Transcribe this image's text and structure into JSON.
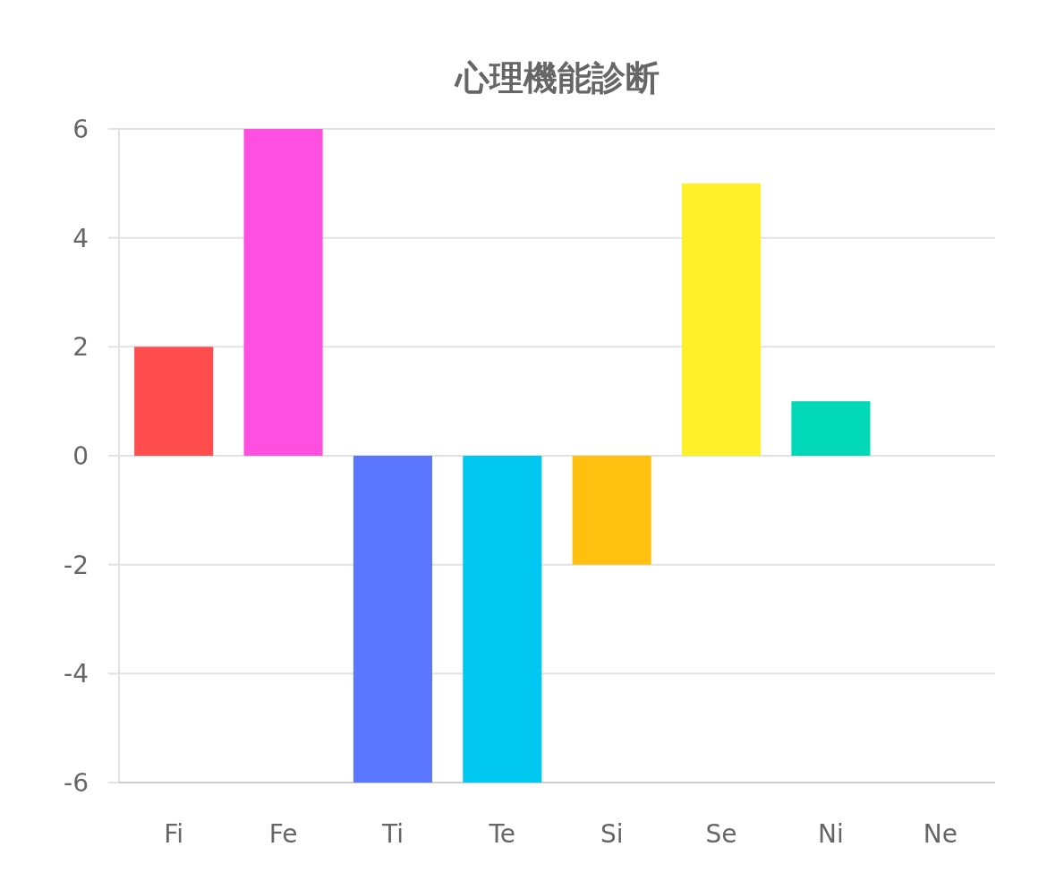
{
  "chart_data": {
    "type": "bar",
    "title": "心理機能診断",
    "categories": [
      "Fi",
      "Fe",
      "Ti",
      "Te",
      "Si",
      "Se",
      "Ni",
      "Ne"
    ],
    "values": [
      2,
      6,
      -6,
      -6,
      -2,
      5,
      1,
      0
    ],
    "colors": [
      "#ff4d4d",
      "#ff4fe0",
      "#5b76ff",
      "#00c8f0",
      "#ffc010",
      "#fff02a",
      "#00d8b8",
      "#ff9f40"
    ],
    "ylim": [
      -6,
      6
    ],
    "yticks": [
      -6,
      -4,
      -2,
      0,
      2,
      4,
      6
    ],
    "grid": "y"
  }
}
